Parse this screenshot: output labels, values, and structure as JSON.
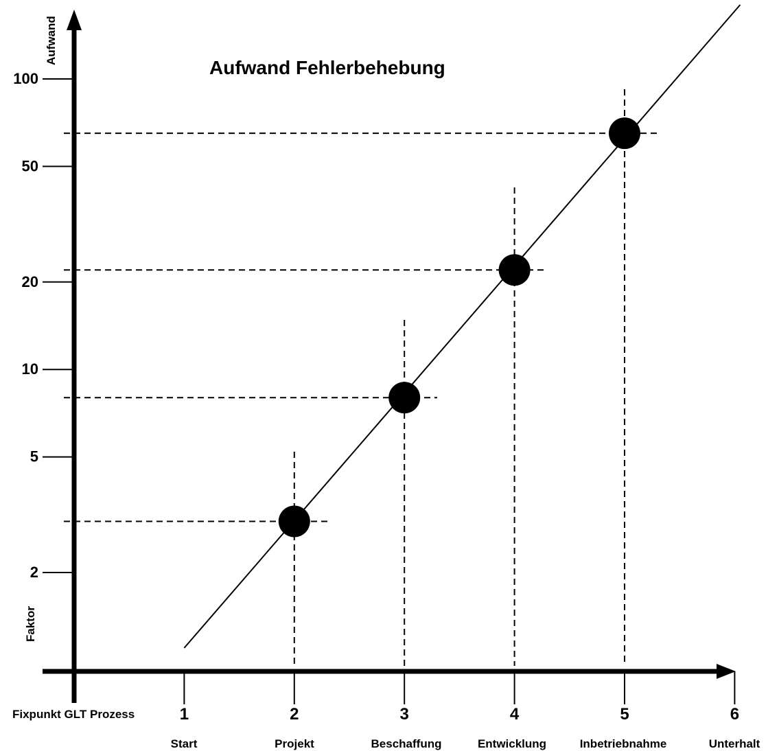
{
  "chart_data": {
    "type": "line",
    "title": "Aufwand Fehlerbehebung",
    "ylabel_top": "Aufwand",
    "ylabel_bottom": "Faktor",
    "xlabel": "Fixpunkt GLT Prozess",
    "y_scale": "log",
    "y_ticks": [
      2,
      5,
      10,
      20,
      50,
      100
    ],
    "x_ticks": [
      1,
      2,
      3,
      4,
      5,
      6
    ],
    "x_phase_labels": [
      "Start",
      "Projekt",
      "Beschaffung",
      "Entwicklung",
      "Inbetriebnahme",
      "Unterhalt"
    ],
    "markers": [
      {
        "x": 2,
        "y": 3
      },
      {
        "x": 3,
        "y": 8
      },
      {
        "x": 4,
        "y": 22
      },
      {
        "x": 5,
        "y": 65
      }
    ],
    "trend_line": {
      "x_start": 1,
      "y_start": 1.1,
      "x_end": 6.0,
      "y_end": 180
    },
    "grid": false
  }
}
